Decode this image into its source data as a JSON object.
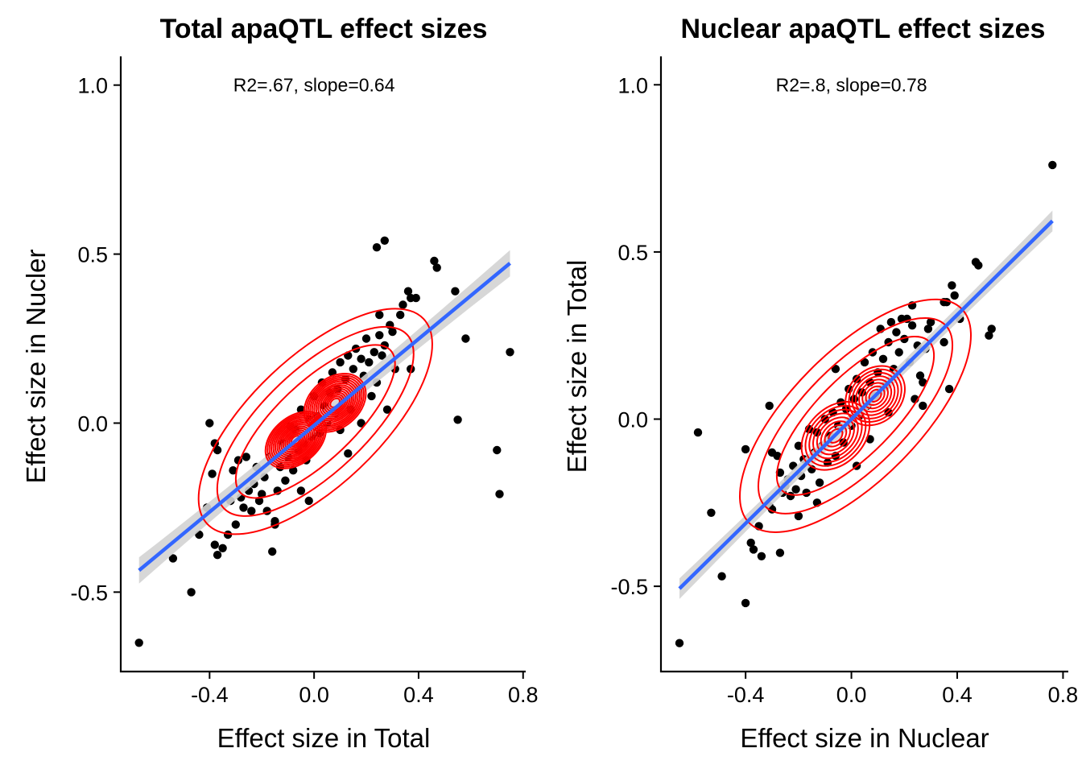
{
  "chart_data": [
    {
      "type": "scatter",
      "title": "Total apaQTL effect sizes",
      "xlabel": "Effect size in Total",
      "ylabel": "Effect size in Nucler",
      "annotation": "R2=.67, slope=0.64",
      "annotation_pos": [
        0.0,
        1.0
      ],
      "xlim": [
        -0.74,
        0.81
      ],
      "ylim": [
        -0.735,
        1.085
      ],
      "xticks": [
        -0.4,
        0.0,
        0.4,
        0.8
      ],
      "xtick_labels": [
        "-0.4",
        "0.0",
        "0.4",
        "0.8"
      ],
      "yticks": [
        -0.5,
        0.0,
        0.5,
        1.0
      ],
      "ytick_labels": [
        "-0.5",
        "0.0",
        "0.5",
        "1.0"
      ],
      "grid": false,
      "fit": {
        "x_range": [
          -0.67,
          0.75
        ],
        "intercept": -0.007,
        "slope": 0.64,
        "se": 0.025,
        "color": "#3366FF",
        "band_color": "#D3D3D3"
      },
      "density_color": "#FF0000",
      "density_peaks": [
        {
          "x": -0.07,
          "y": -0.05,
          "sx": 0.08,
          "sy": 0.07,
          "rot": -40,
          "w": 1.0
        },
        {
          "x": 0.08,
          "y": 0.06,
          "sx": 0.08,
          "sy": 0.075,
          "rot": -40,
          "w": 0.95
        }
      ],
      "density_levels": 14,
      "points": [
        [
          -0.67,
          -0.65
        ],
        [
          -0.54,
          -0.4
        ],
        [
          -0.47,
          -0.5
        ],
        [
          -0.44,
          -0.33
        ],
        [
          -0.41,
          -0.25
        ],
        [
          -0.4,
          0.0
        ],
        [
          -0.39,
          -0.15
        ],
        [
          -0.38,
          -0.36
        ],
        [
          -0.37,
          -0.39
        ],
        [
          -0.38,
          -0.06
        ],
        [
          -0.37,
          -0.08
        ],
        [
          -0.35,
          -0.37
        ],
        [
          -0.33,
          -0.33
        ],
        [
          -0.32,
          -0.23
        ],
        [
          -0.31,
          -0.14
        ],
        [
          -0.3,
          -0.3
        ],
        [
          -0.29,
          -0.11
        ],
        [
          -0.28,
          -0.22
        ],
        [
          -0.27,
          -0.25
        ],
        [
          -0.26,
          -0.1
        ],
        [
          -0.25,
          -0.2
        ],
        [
          -0.24,
          -0.26
        ],
        [
          -0.23,
          -0.18
        ],
        [
          -0.22,
          -0.13
        ],
        [
          -0.21,
          -0.23
        ],
        [
          -0.2,
          -0.21
        ],
        [
          -0.19,
          -0.16
        ],
        [
          -0.18,
          -0.26
        ],
        [
          -0.17,
          -0.1
        ],
        [
          -0.16,
          -0.38
        ],
        [
          -0.15,
          -0.29
        ],
        [
          -0.14,
          -0.2
        ],
        [
          -0.13,
          -0.13
        ],
        [
          -0.12,
          -0.06
        ],
        [
          -0.11,
          -0.17
        ],
        [
          -0.1,
          -0.1
        ],
        [
          -0.09,
          -0.01
        ],
        [
          -0.08,
          -0.14
        ],
        [
          -0.07,
          -0.02
        ],
        [
          -0.06,
          -0.08
        ],
        [
          -0.05,
          0.04
        ],
        [
          -0.04,
          -0.06
        ],
        [
          -0.03,
          -0.11
        ],
        [
          -0.02,
          0.01
        ],
        [
          -0.01,
          -0.04
        ],
        [
          0.0,
          0.08
        ],
        [
          0.01,
          0.02
        ],
        [
          0.02,
          -0.03
        ],
        [
          0.03,
          0.12
        ],
        [
          0.04,
          0.05
        ],
        [
          0.05,
          0.0
        ],
        [
          0.06,
          0.09
        ],
        [
          0.07,
          0.15
        ],
        [
          0.08,
          0.03
        ],
        [
          0.09,
          0.1
        ],
        [
          0.1,
          0.18
        ],
        [
          0.11,
          0.07
        ],
        [
          0.12,
          0.13
        ],
        [
          0.13,
          0.2
        ],
        [
          0.14,
          0.04
        ],
        [
          0.15,
          0.16
        ],
        [
          0.16,
          0.22
        ],
        [
          0.17,
          0.1
        ],
        [
          0.18,
          0.19
        ],
        [
          0.19,
          0.14
        ],
        [
          0.2,
          0.25
        ],
        [
          0.21,
          0.18
        ],
        [
          0.22,
          0.08
        ],
        [
          0.23,
          0.21
        ],
        [
          0.24,
          0.12
        ],
        [
          0.25,
          0.26
        ],
        [
          0.26,
          0.2
        ],
        [
          0.27,
          0.23
        ],
        [
          0.28,
          0.04
        ],
        [
          0.29,
          0.29
        ],
        [
          0.3,
          0.27
        ],
        [
          0.31,
          0.16
        ],
        [
          0.25,
          0.32
        ],
        [
          0.24,
          0.52
        ],
        [
          0.27,
          0.54
        ],
        [
          0.33,
          0.32
        ],
        [
          0.34,
          0.35
        ],
        [
          0.36,
          0.39
        ],
        [
          0.37,
          0.37
        ],
        [
          0.39,
          0.37
        ],
        [
          0.37,
          0.16
        ],
        [
          0.46,
          0.48
        ],
        [
          0.47,
          0.46
        ],
        [
          0.54,
          0.39
        ],
        [
          0.58,
          0.25
        ],
        [
          0.55,
          0.01
        ],
        [
          0.7,
          -0.08
        ],
        [
          0.71,
          -0.21
        ],
        [
          0.75,
          0.21
        ],
        [
          -0.05,
          -0.2
        ],
        [
          0.13,
          -0.09
        ],
        [
          -0.15,
          -0.3
        ],
        [
          -0.02,
          -0.23
        ],
        [
          0.1,
          -0.02
        ],
        [
          0.18,
          0.0
        ]
      ]
    },
    {
      "type": "scatter",
      "title": "Nuclear apaQTL effect sizes",
      "xlabel": "Effect size in Nuclear",
      "ylabel": "Effect size in Total",
      "annotation": "R2=.8, slope=0.78",
      "annotation_pos": [
        0.0,
        1.0
      ],
      "xlim": [
        -0.72,
        0.82
      ],
      "ylim": [
        -0.755,
        1.085
      ],
      "xticks": [
        -0.4,
        0.0,
        0.4,
        0.8
      ],
      "xtick_labels": [
        "-0.4",
        "0.0",
        "0.4",
        "0.8"
      ],
      "yticks": [
        -0.5,
        0.0,
        0.5,
        1.0
      ],
      "ytick_labels": [
        "-0.5",
        "0.0",
        "0.5",
        "1.0"
      ],
      "grid": false,
      "fit": {
        "x_range": [
          -0.65,
          0.76
        ],
        "intercept": 0.0,
        "slope": 0.78,
        "se": 0.02,
        "color": "#3366FF",
        "band_color": "#D3D3D3"
      },
      "density_color": "#FF0000",
      "density_peaks": [
        {
          "x": -0.06,
          "y": -0.05,
          "sx": 0.09,
          "sy": 0.085,
          "rot": -45,
          "w": 1.0
        },
        {
          "x": 0.09,
          "y": 0.07,
          "sx": 0.075,
          "sy": 0.08,
          "rot": -45,
          "w": 0.85
        }
      ],
      "density_levels": 8,
      "points": [
        [
          -0.65,
          -0.67
        ],
        [
          -0.58,
          -0.04
        ],
        [
          -0.53,
          -0.28
        ],
        [
          -0.49,
          -0.47
        ],
        [
          -0.4,
          -0.55
        ],
        [
          -0.4,
          -0.09
        ],
        [
          -0.38,
          -0.37
        ],
        [
          -0.37,
          -0.39
        ],
        [
          -0.35,
          -0.32
        ],
        [
          -0.34,
          -0.41
        ],
        [
          -0.31,
          -0.26
        ],
        [
          -0.3,
          -0.27
        ],
        [
          -0.31,
          0.04
        ],
        [
          -0.3,
          -0.1
        ],
        [
          -0.28,
          -0.11
        ],
        [
          -0.27,
          -0.4
        ],
        [
          -0.27,
          -0.16
        ],
        [
          -0.26,
          -0.22
        ],
        [
          -0.25,
          -0.2
        ],
        [
          -0.24,
          -0.18
        ],
        [
          -0.23,
          -0.23
        ],
        [
          -0.22,
          -0.14
        ],
        [
          -0.21,
          -0.21
        ],
        [
          -0.2,
          -0.08
        ],
        [
          -0.19,
          -0.17
        ],
        [
          -0.18,
          -0.12
        ],
        [
          -0.17,
          -0.22
        ],
        [
          -0.16,
          -0.03
        ],
        [
          -0.15,
          -0.15
        ],
        [
          -0.14,
          -0.1
        ],
        [
          -0.13,
          -0.04
        ],
        [
          -0.12,
          -0.19
        ],
        [
          -0.11,
          -0.08
        ],
        [
          -0.1,
          0.0
        ],
        [
          -0.09,
          -0.13
        ],
        [
          -0.08,
          -0.05
        ],
        [
          -0.07,
          0.02
        ],
        [
          -0.06,
          -0.11
        ],
        [
          -0.05,
          -0.02
        ],
        [
          -0.04,
          0.05
        ],
        [
          -0.03,
          -0.07
        ],
        [
          -0.02,
          0.03
        ],
        [
          -0.01,
          0.09
        ],
        [
          0.0,
          -0.02
        ],
        [
          0.01,
          0.06
        ],
        [
          0.02,
          0.12
        ],
        [
          0.03,
          0.01
        ],
        [
          0.04,
          0.08
        ],
        [
          0.05,
          0.17
        ],
        [
          0.06,
          0.04
        ],
        [
          0.07,
          0.11
        ],
        [
          0.08,
          0.2
        ],
        [
          0.09,
          0.07
        ],
        [
          0.1,
          0.14
        ],
        [
          0.11,
          0.27
        ],
        [
          0.12,
          0.18
        ],
        [
          0.13,
          0.1
        ],
        [
          0.14,
          0.23
        ],
        [
          0.15,
          0.29
        ],
        [
          0.16,
          0.15
        ],
        [
          0.17,
          0.26
        ],
        [
          0.18,
          0.2
        ],
        [
          0.19,
          0.3
        ],
        [
          0.2,
          0.24
        ],
        [
          0.21,
          0.3
        ],
        [
          0.22,
          0.17
        ],
        [
          0.23,
          0.28
        ],
        [
          0.24,
          0.06
        ],
        [
          0.25,
          0.22
        ],
        [
          0.26,
          0.13
        ],
        [
          0.27,
          0.11
        ],
        [
          0.28,
          0.21
        ],
        [
          0.29,
          0.27
        ],
        [
          0.3,
          0.29
        ],
        [
          0.23,
          0.34
        ],
        [
          0.35,
          0.35
        ],
        [
          0.36,
          0.35
        ],
        [
          0.38,
          0.4
        ],
        [
          0.39,
          0.37
        ],
        [
          0.41,
          0.3
        ],
        [
          0.47,
          0.47
        ],
        [
          0.48,
          0.46
        ],
        [
          0.52,
          0.25
        ],
        [
          0.53,
          0.27
        ],
        [
          0.76,
          0.76
        ],
        [
          0.35,
          0.23
        ],
        [
          0.37,
          0.09
        ],
        [
          0.07,
          -0.06
        ],
        [
          -0.13,
          -0.25
        ],
        [
          0.02,
          -0.14
        ],
        [
          0.27,
          0.04
        ],
        [
          0.14,
          0.02
        ],
        [
          -0.2,
          -0.29
        ],
        [
          -0.06,
          0.15
        ]
      ]
    }
  ]
}
